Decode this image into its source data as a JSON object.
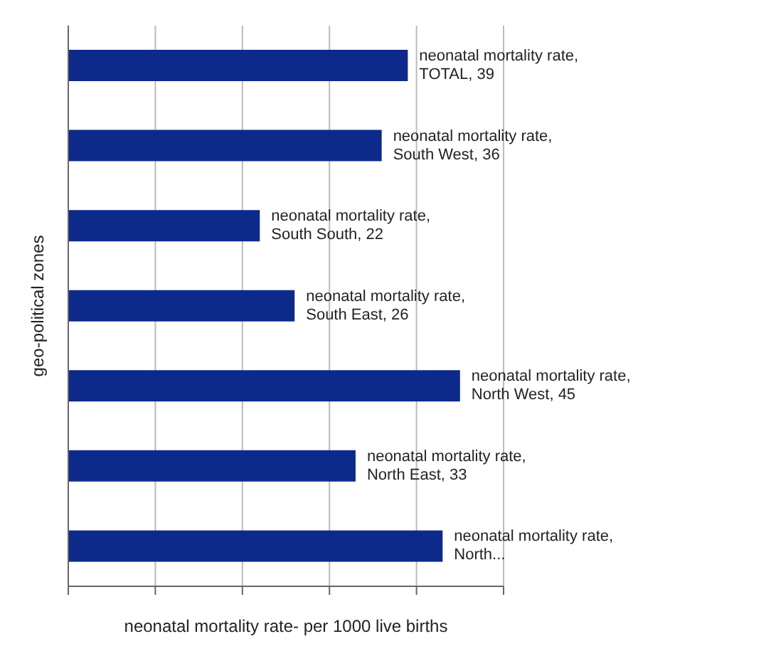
{
  "chart_data": {
    "type": "bar",
    "orientation": "horizontal",
    "xlabel": "neonatal mortality rate- per 1000 live births",
    "ylabel": "geo-political zones",
    "categories": [
      null,
      null,
      null,
      null,
      null,
      null,
      null
    ],
    "values": [
      39,
      36,
      22,
      26,
      45,
      33,
      43
    ],
    "value_labels": [
      "neonatal mortality rate, TOTAL, 39",
      "neonatal mortality rate, South West, 36",
      "neonatal mortality rate, South South, 22",
      "neonatal mortality rate, South East, 26",
      "neonatal mortality rate, North West, 45",
      "neonatal mortality rate, North East, 33",
      "neonatal mortality rate, North..."
    ],
    "color": "#0d2a8a",
    "xlim": [
      0,
      50
    ],
    "xticks": [
      {
        "value": 0,
        "label": null
      },
      {
        "value": 10,
        "label": null
      },
      {
        "value": 20,
        "label": null
      },
      {
        "value": 30,
        "label": null
      },
      {
        "value": 40,
        "label": null
      },
      {
        "value": 50,
        "label": null
      }
    ],
    "grid": "x",
    "tick_labels": false
  }
}
